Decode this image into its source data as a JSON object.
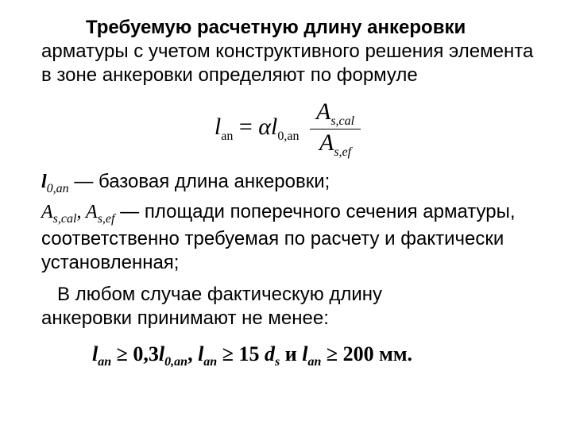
{
  "para1": {
    "bold": "Требуемую расчетную длину анкеровки",
    "rest": " арматуры с учетом конструктивного решения элемента в зоне анкеровки определяют по формуле"
  },
  "formula": {
    "l": "l",
    "l_sub": "an",
    "eq": " = ",
    "alpha": "α",
    "l0": "l",
    "l0_sub": "0,an",
    "A": "A",
    "num_sub": "s,cal",
    "den_sub": "s,ef"
  },
  "def1": {
    "sym": "l",
    "sub": "0,an",
    "text": " — базовая длина анкеровки;"
  },
  "def2": {
    "sym1": "A",
    "sub1": "s,cal",
    "sep": ", ",
    "sym2": "A",
    "sub2": "s,ef",
    "text1": " — площади поперечного сечения арматуры, соответственно требуемая по расчету и фактически установленная;"
  },
  "para2_a": "В любом случае фактическую длину",
  "para2_b": "анкеровки принимают не менее:",
  "cond": {
    "l": "l",
    "an": "an",
    "ge": " ≥ ",
    "c1": "0,3",
    "l0an": "0,an",
    "sep": ", ",
    "c2": "15 ",
    "d": "d",
    "s": "s",
    "and": " и ",
    "c3": "  200 мм",
    "dot": "."
  },
  "colors": {
    "text": "#000000",
    "bg": "#ffffff"
  },
  "fontsize_body": 24,
  "fontsize_formula": 30,
  "fontsize_cond": 26
}
